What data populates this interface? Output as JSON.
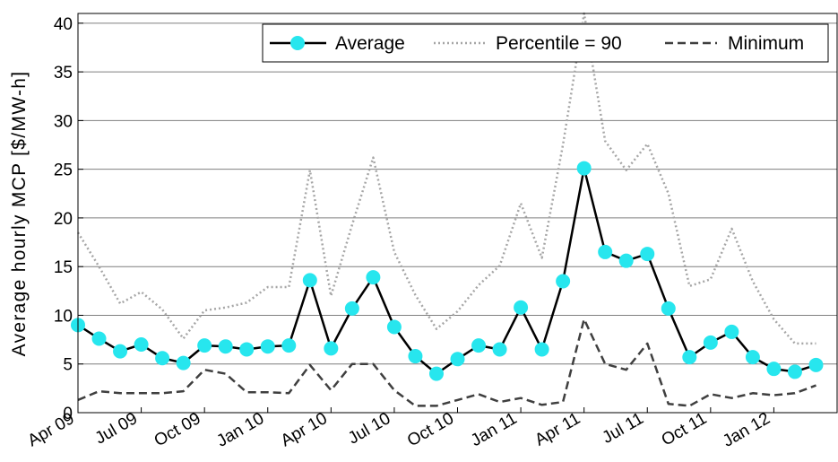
{
  "chart_data": {
    "type": "line",
    "title": "",
    "xlabel": "",
    "ylabel": "Average hourly MCP [$/MW-h]",
    "ylim": [
      0,
      41
    ],
    "xlim": [
      "2009-04",
      "2012-04"
    ],
    "y_ticks": [
      0,
      5,
      10,
      15,
      20,
      25,
      30,
      35,
      40
    ],
    "x_ticks": [
      {
        "date": "2009-04",
        "label": "Apr 09"
      },
      {
        "date": "2009-07",
        "label": "Jul 09"
      },
      {
        "date": "2009-10",
        "label": "Oct 09"
      },
      {
        "date": "2010-01",
        "label": "Jan 10"
      },
      {
        "date": "2010-04",
        "label": "Apr 10"
      },
      {
        "date": "2010-07",
        "label": "Jul 10"
      },
      {
        "date": "2010-10",
        "label": "Oct 10"
      },
      {
        "date": "2011-01",
        "label": "Jan 11"
      },
      {
        "date": "2011-04",
        "label": "Apr 11"
      },
      {
        "date": "2011-07",
        "label": "Jul 11"
      },
      {
        "date": "2011-10",
        "label": "Oct 11"
      },
      {
        "date": "2012-01",
        "label": "Jan 12"
      }
    ],
    "grid": "horizontal",
    "legend_position": "top-right",
    "x": [
      "2009-04",
      "2009-05",
      "2009-06",
      "2009-07",
      "2009-08",
      "2009-09",
      "2009-10",
      "2009-11",
      "2009-12",
      "2010-01",
      "2010-02",
      "2010-03",
      "2010-04",
      "2010-05",
      "2010-06",
      "2010-07",
      "2010-08",
      "2010-09",
      "2010-10",
      "2010-11",
      "2010-12",
      "2011-01",
      "2011-02",
      "2011-03",
      "2011-04",
      "2011-05",
      "2011-06",
      "2011-07",
      "2011-08",
      "2011-09",
      "2011-10",
      "2011-11",
      "2011-12",
      "2012-01",
      "2012-02",
      "2012-03",
      "2012-04"
    ],
    "series": [
      {
        "name": "Average",
        "style": "solid-markers",
        "color": "#000000",
        "marker_color": "#27e6ee",
        "values": [
          9.0,
          7.6,
          6.3,
          7.0,
          5.6,
          5.1,
          6.9,
          6.8,
          6.5,
          6.8,
          6.9,
          13.6,
          6.6,
          10.7,
          13.9,
          8.8,
          5.8,
          4.0,
          5.5,
          6.9,
          6.5,
          10.8,
          6.5,
          13.5,
          25.1,
          16.5,
          15.6,
          16.3,
          10.7,
          5.7,
          7.2,
          8.3,
          5.7,
          4.5,
          4.2,
          4.9,
          null
        ]
      },
      {
        "name": "Percentile = 90",
        "style": "dotted",
        "color": "#a6a6a6",
        "values": [
          18.5,
          15.0,
          11.2,
          12.4,
          10.6,
          7.6,
          10.5,
          10.8,
          11.3,
          12.9,
          12.9,
          24.9,
          12.0,
          19.3,
          26.2,
          16.5,
          12.1,
          8.6,
          10.4,
          13.1,
          15.1,
          21.5,
          15.9,
          27.5,
          41.0,
          27.9,
          24.9,
          27.6,
          22.5,
          13.0,
          13.7,
          18.9,
          13.5,
          9.6,
          7.1,
          7.1,
          null
        ]
      },
      {
        "name": "Minimum",
        "style": "dashed",
        "color": "#3f3f3f",
        "values": [
          1.3,
          2.2,
          2.0,
          2.0,
          2.0,
          2.2,
          4.4,
          4.0,
          2.1,
          2.1,
          2.0,
          4.9,
          2.3,
          5.0,
          5.0,
          2.3,
          0.7,
          0.7,
          1.3,
          1.9,
          1.1,
          1.5,
          0.8,
          1.1,
          9.6,
          5.0,
          4.4,
          7.1,
          0.9,
          0.7,
          1.9,
          1.5,
          2.0,
          1.8,
          2.0,
          2.8,
          null
        ]
      }
    ]
  }
}
